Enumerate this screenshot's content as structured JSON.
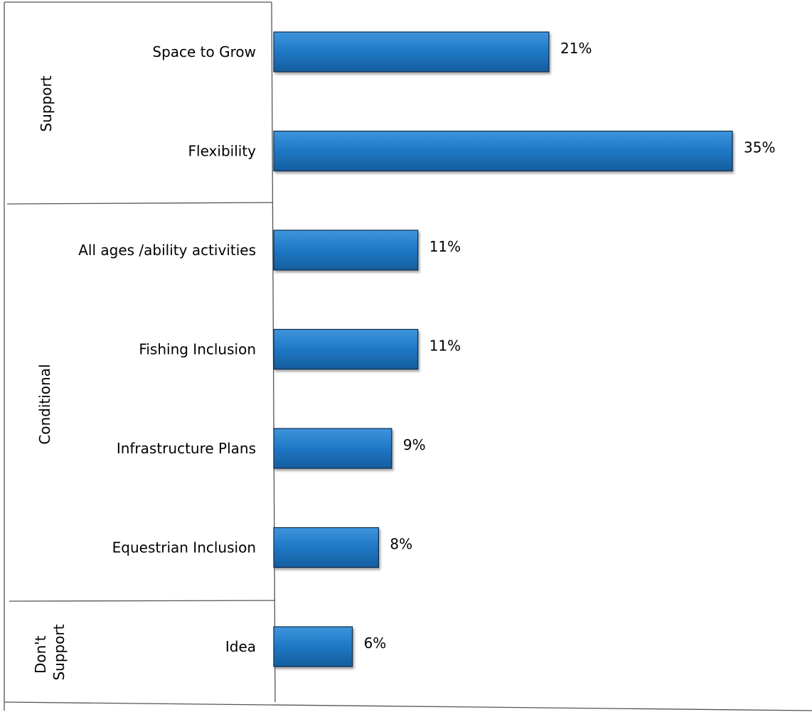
{
  "chart_data": {
    "type": "bar",
    "orientation": "horizontal",
    "xlim": [
      0,
      35
    ],
    "grid": false,
    "bar_color": "#1F77C4",
    "bar_edge_color": "#0B2A4A",
    "groups": [
      {
        "name": "Support",
        "categories": [
          "Space to Grow",
          "Flexibility"
        ],
        "values": [
          21,
          35
        ],
        "labels": [
          "21%",
          "35%"
        ]
      },
      {
        "name": "Conditional",
        "categories": [
          "All ages /ability activities",
          "Fishing Inclusion",
          "Infrastructure Plans",
          "Equestrian Inclusion"
        ],
        "values": [
          11,
          11,
          9,
          8
        ],
        "labels": [
          "11%",
          "11%",
          "9%",
          "8%"
        ]
      },
      {
        "name_lines": [
          "Don't",
          "Support"
        ],
        "categories": [
          "Idea"
        ],
        "values": [
          6
        ],
        "labels": [
          "6%"
        ]
      }
    ]
  }
}
